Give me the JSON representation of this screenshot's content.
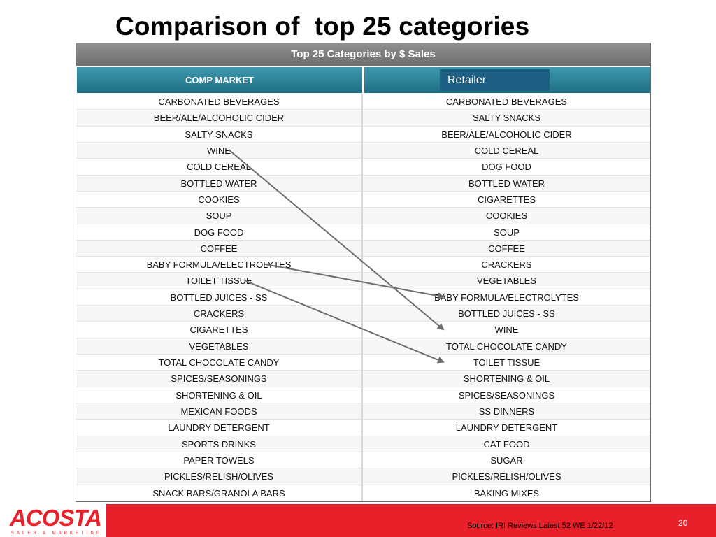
{
  "title": "Comparison of  top 25 categories",
  "table": {
    "header": "Top 25 Categories by $ Sales",
    "columns": {
      "left": "COMP MARKET",
      "right": "Retailer"
    },
    "rows": [
      {
        "comp": "CARBONATED BEVERAGES",
        "retailer": "CARBONATED BEVERAGES"
      },
      {
        "comp": "BEER/ALE/ALCOHOLIC CIDER",
        "retailer": "SALTY SNACKS"
      },
      {
        "comp": "SALTY SNACKS",
        "retailer": "BEER/ALE/ALCOHOLIC CIDER"
      },
      {
        "comp": "WINE",
        "retailer": "COLD CEREAL"
      },
      {
        "comp": "COLD CEREAL",
        "retailer": "DOG FOOD"
      },
      {
        "comp": "BOTTLED WATER",
        "retailer": "BOTTLED WATER"
      },
      {
        "comp": "COOKIES",
        "retailer": "CIGARETTES"
      },
      {
        "comp": "SOUP",
        "retailer": "COOKIES"
      },
      {
        "comp": "DOG FOOD",
        "retailer": "SOUP"
      },
      {
        "comp": "COFFEE",
        "retailer": "COFFEE"
      },
      {
        "comp": "BABY FORMULA/ELECTROLYTES",
        "retailer": "CRACKERS"
      },
      {
        "comp": "TOILET TISSUE",
        "retailer": "VEGETABLES"
      },
      {
        "comp": "BOTTLED JUICES - SS",
        "retailer": "BABY FORMULA/ELECTROLYTES"
      },
      {
        "comp": "CRACKERS",
        "retailer": "BOTTLED JUICES - SS"
      },
      {
        "comp": "CIGARETTES",
        "retailer": "WINE"
      },
      {
        "comp": "VEGETABLES",
        "retailer": "TOTAL CHOCOLATE CANDY"
      },
      {
        "comp": "TOTAL CHOCOLATE CANDY",
        "retailer": "TOILET TISSUE"
      },
      {
        "comp": "SPICES/SEASONINGS",
        "retailer": "SHORTENING & OIL"
      },
      {
        "comp": "SHORTENING & OIL",
        "retailer": "SPICES/SEASONINGS"
      },
      {
        "comp": "MEXICAN FOODS",
        "retailer": "SS DINNERS"
      },
      {
        "comp": "LAUNDRY DETERGENT",
        "retailer": "LAUNDRY DETERGENT"
      },
      {
        "comp": "SPORTS DRINKS",
        "retailer": "CAT FOOD"
      },
      {
        "comp": "PAPER TOWELS",
        "retailer": "SUGAR"
      },
      {
        "comp": "PICKLES/RELISH/OLIVES",
        "retailer": "PICKLES/RELISH/OLIVES"
      },
      {
        "comp": "SNACK BARS/GRANOLA BARS",
        "retailer": "BAKING MIXES"
      }
    ]
  },
  "arrows": [
    {
      "from_comp": "WINE",
      "to_retailer": "WINE"
    },
    {
      "from_comp": "BABY FORMULA/ELECTROLYTES",
      "to_retailer": "BABY FORMULA/ELECTROLYTES"
    },
    {
      "from_comp": "TOILET TISSUE",
      "to_retailer": "TOILET TISSUE"
    }
  ],
  "footer": {
    "logo": "ACOSTA",
    "logo_sub": "SALES & MARKETING",
    "source": "Source: IRI Reviews Latest 52 WE 1/22/12",
    "page_number": "20"
  },
  "colors": {
    "footer_red": "#e8202a",
    "header_gray": "#7f7f7f",
    "column_teal": "#2a8197",
    "retailer_blue": "#1c5f82",
    "arrow_gray": "#6e6e6e"
  }
}
